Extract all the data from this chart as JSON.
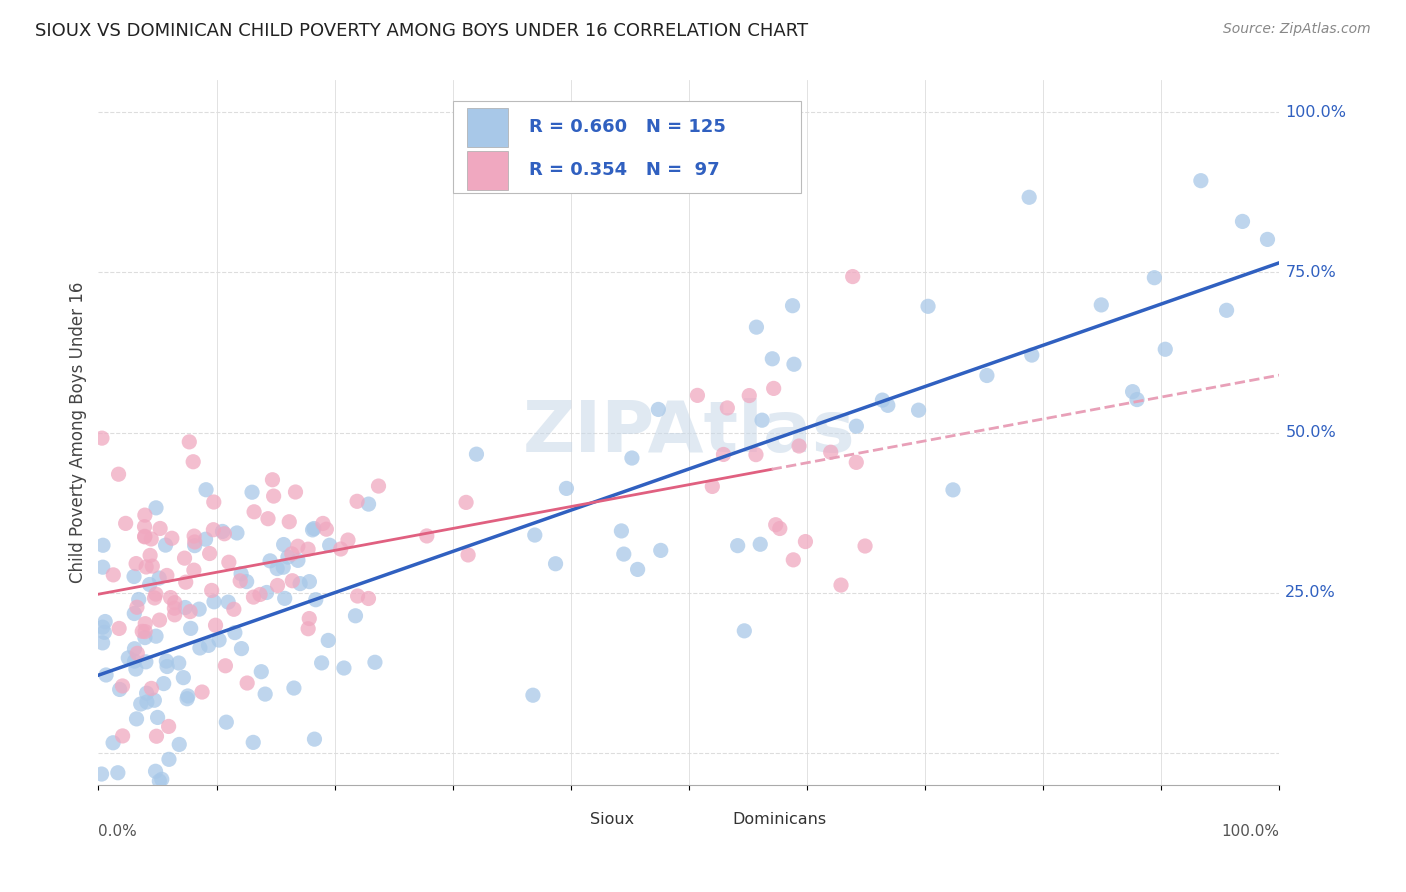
{
  "title": "SIOUX VS DOMINICAN CHILD POVERTY AMONG BOYS UNDER 16 CORRELATION CHART",
  "source": "Source: ZipAtlas.com",
  "ylabel": "Child Poverty Among Boys Under 16",
  "xlim": [
    0.0,
    1.0
  ],
  "ylim": [
    -0.05,
    1.05
  ],
  "watermark": "ZIPAtlas",
  "sioux_R": 0.66,
  "sioux_N": 125,
  "dominican_R": 0.354,
  "dominican_N": 97,
  "sioux_color": "#a8c8e8",
  "dominican_color": "#f0a8c0",
  "sioux_line_color": "#3060c0",
  "dominican_line_color": "#e06080",
  "dominican_dash_color": "#e8a0b8",
  "background_color": "#ffffff",
  "grid_color": "#dddddd",
  "legend_text_color": "#3060c0",
  "legend_n_color": "#111111",
  "right_axis_color": "#3060c0"
}
